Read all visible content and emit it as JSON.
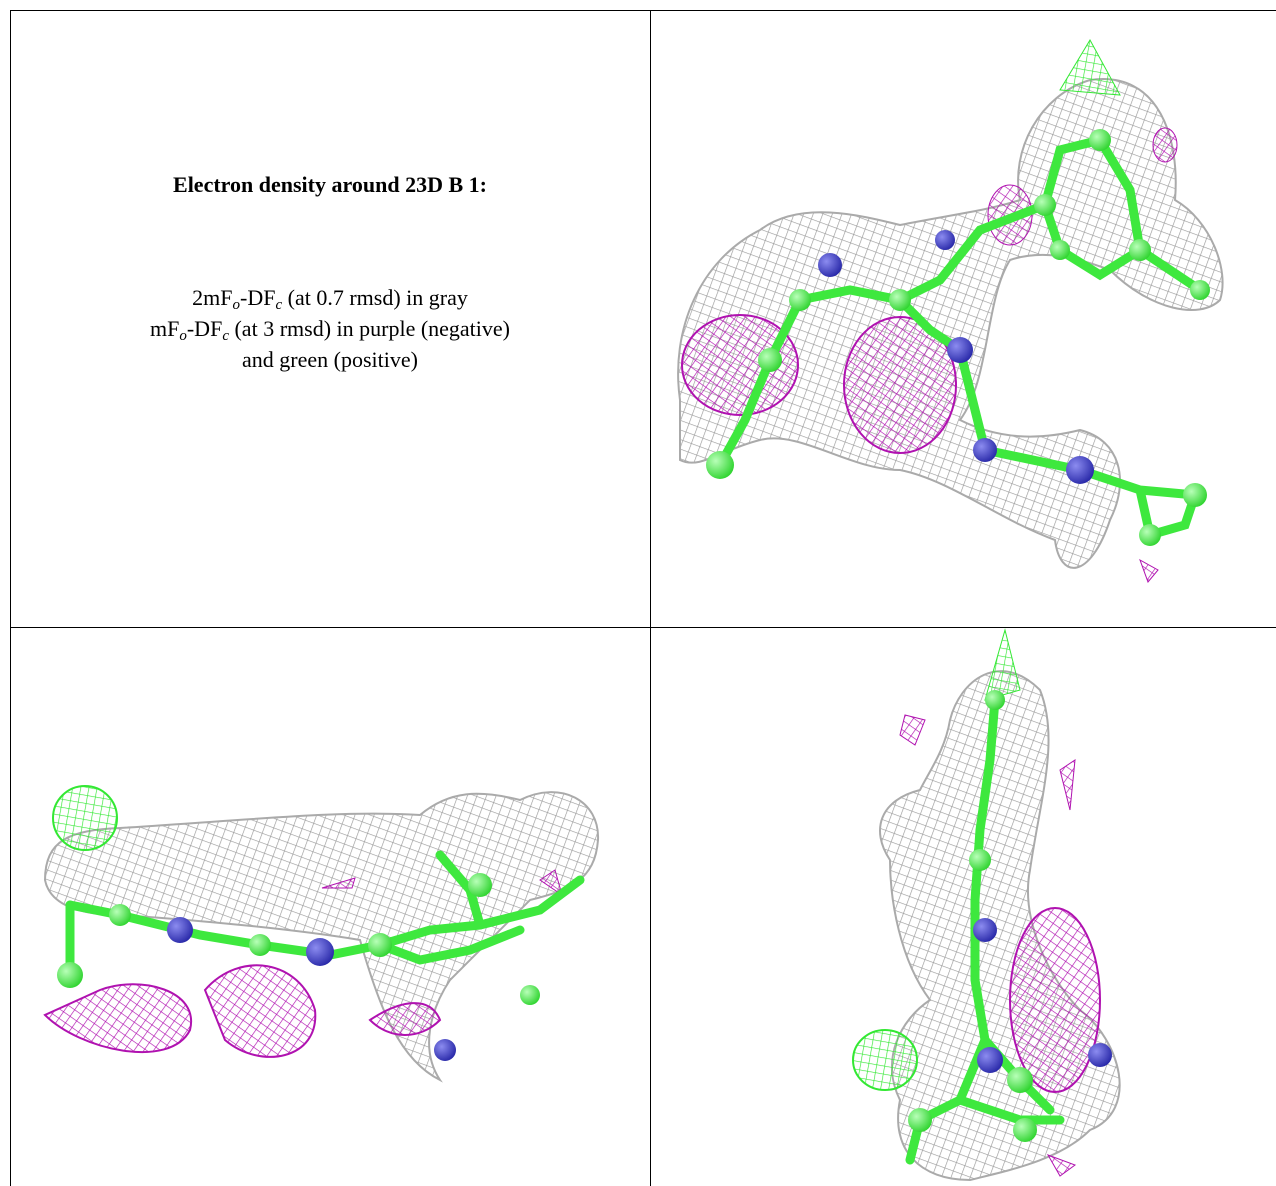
{
  "title": "Electron density around 23D B 1:",
  "legend": [
    [
      "2mF",
      "o",
      "-DF",
      "c",
      " (at 0.7 rmsd) in gray"
    ],
    [
      "mF",
      "o",
      "-DF",
      "c",
      " (at 3 rmsd) in purple (negative)"
    ],
    [
      "and green (positive)"
    ]
  ]
}
